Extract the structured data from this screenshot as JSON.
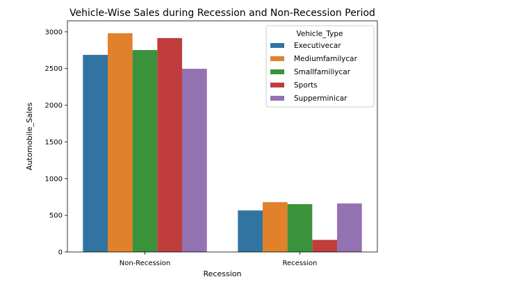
{
  "chart_data": {
    "type": "bar",
    "title": "Vehicle-Wise Sales during Recession and Non-Recession Period",
    "xlabel": "Recession",
    "ylabel": "Automobile_Sales",
    "categories": [
      "Non-Recession",
      "Recession"
    ],
    "series": [
      {
        "name": "Executivecar",
        "values": [
          2686,
          566
        ],
        "color": "#3274a1"
      },
      {
        "name": "Mediumfamilycar",
        "values": [
          2981,
          679
        ],
        "color": "#e1812c"
      },
      {
        "name": "Smallfamiliycar",
        "values": [
          2752,
          652
        ],
        "color": "#3a923a"
      },
      {
        "name": "Sports",
        "values": [
          2915,
          165
        ],
        "color": "#c03d3e"
      },
      {
        "name": "Supperminicar",
        "values": [
          2497,
          661
        ],
        "color": "#9372b2"
      }
    ],
    "ylim": [
      0,
      3150
    ],
    "yticks": [
      0,
      500,
      1000,
      1500,
      2000,
      2500,
      3000
    ],
    "grid": false,
    "legend": {
      "title": "Vehicle_Type",
      "position": "top-right"
    }
  }
}
